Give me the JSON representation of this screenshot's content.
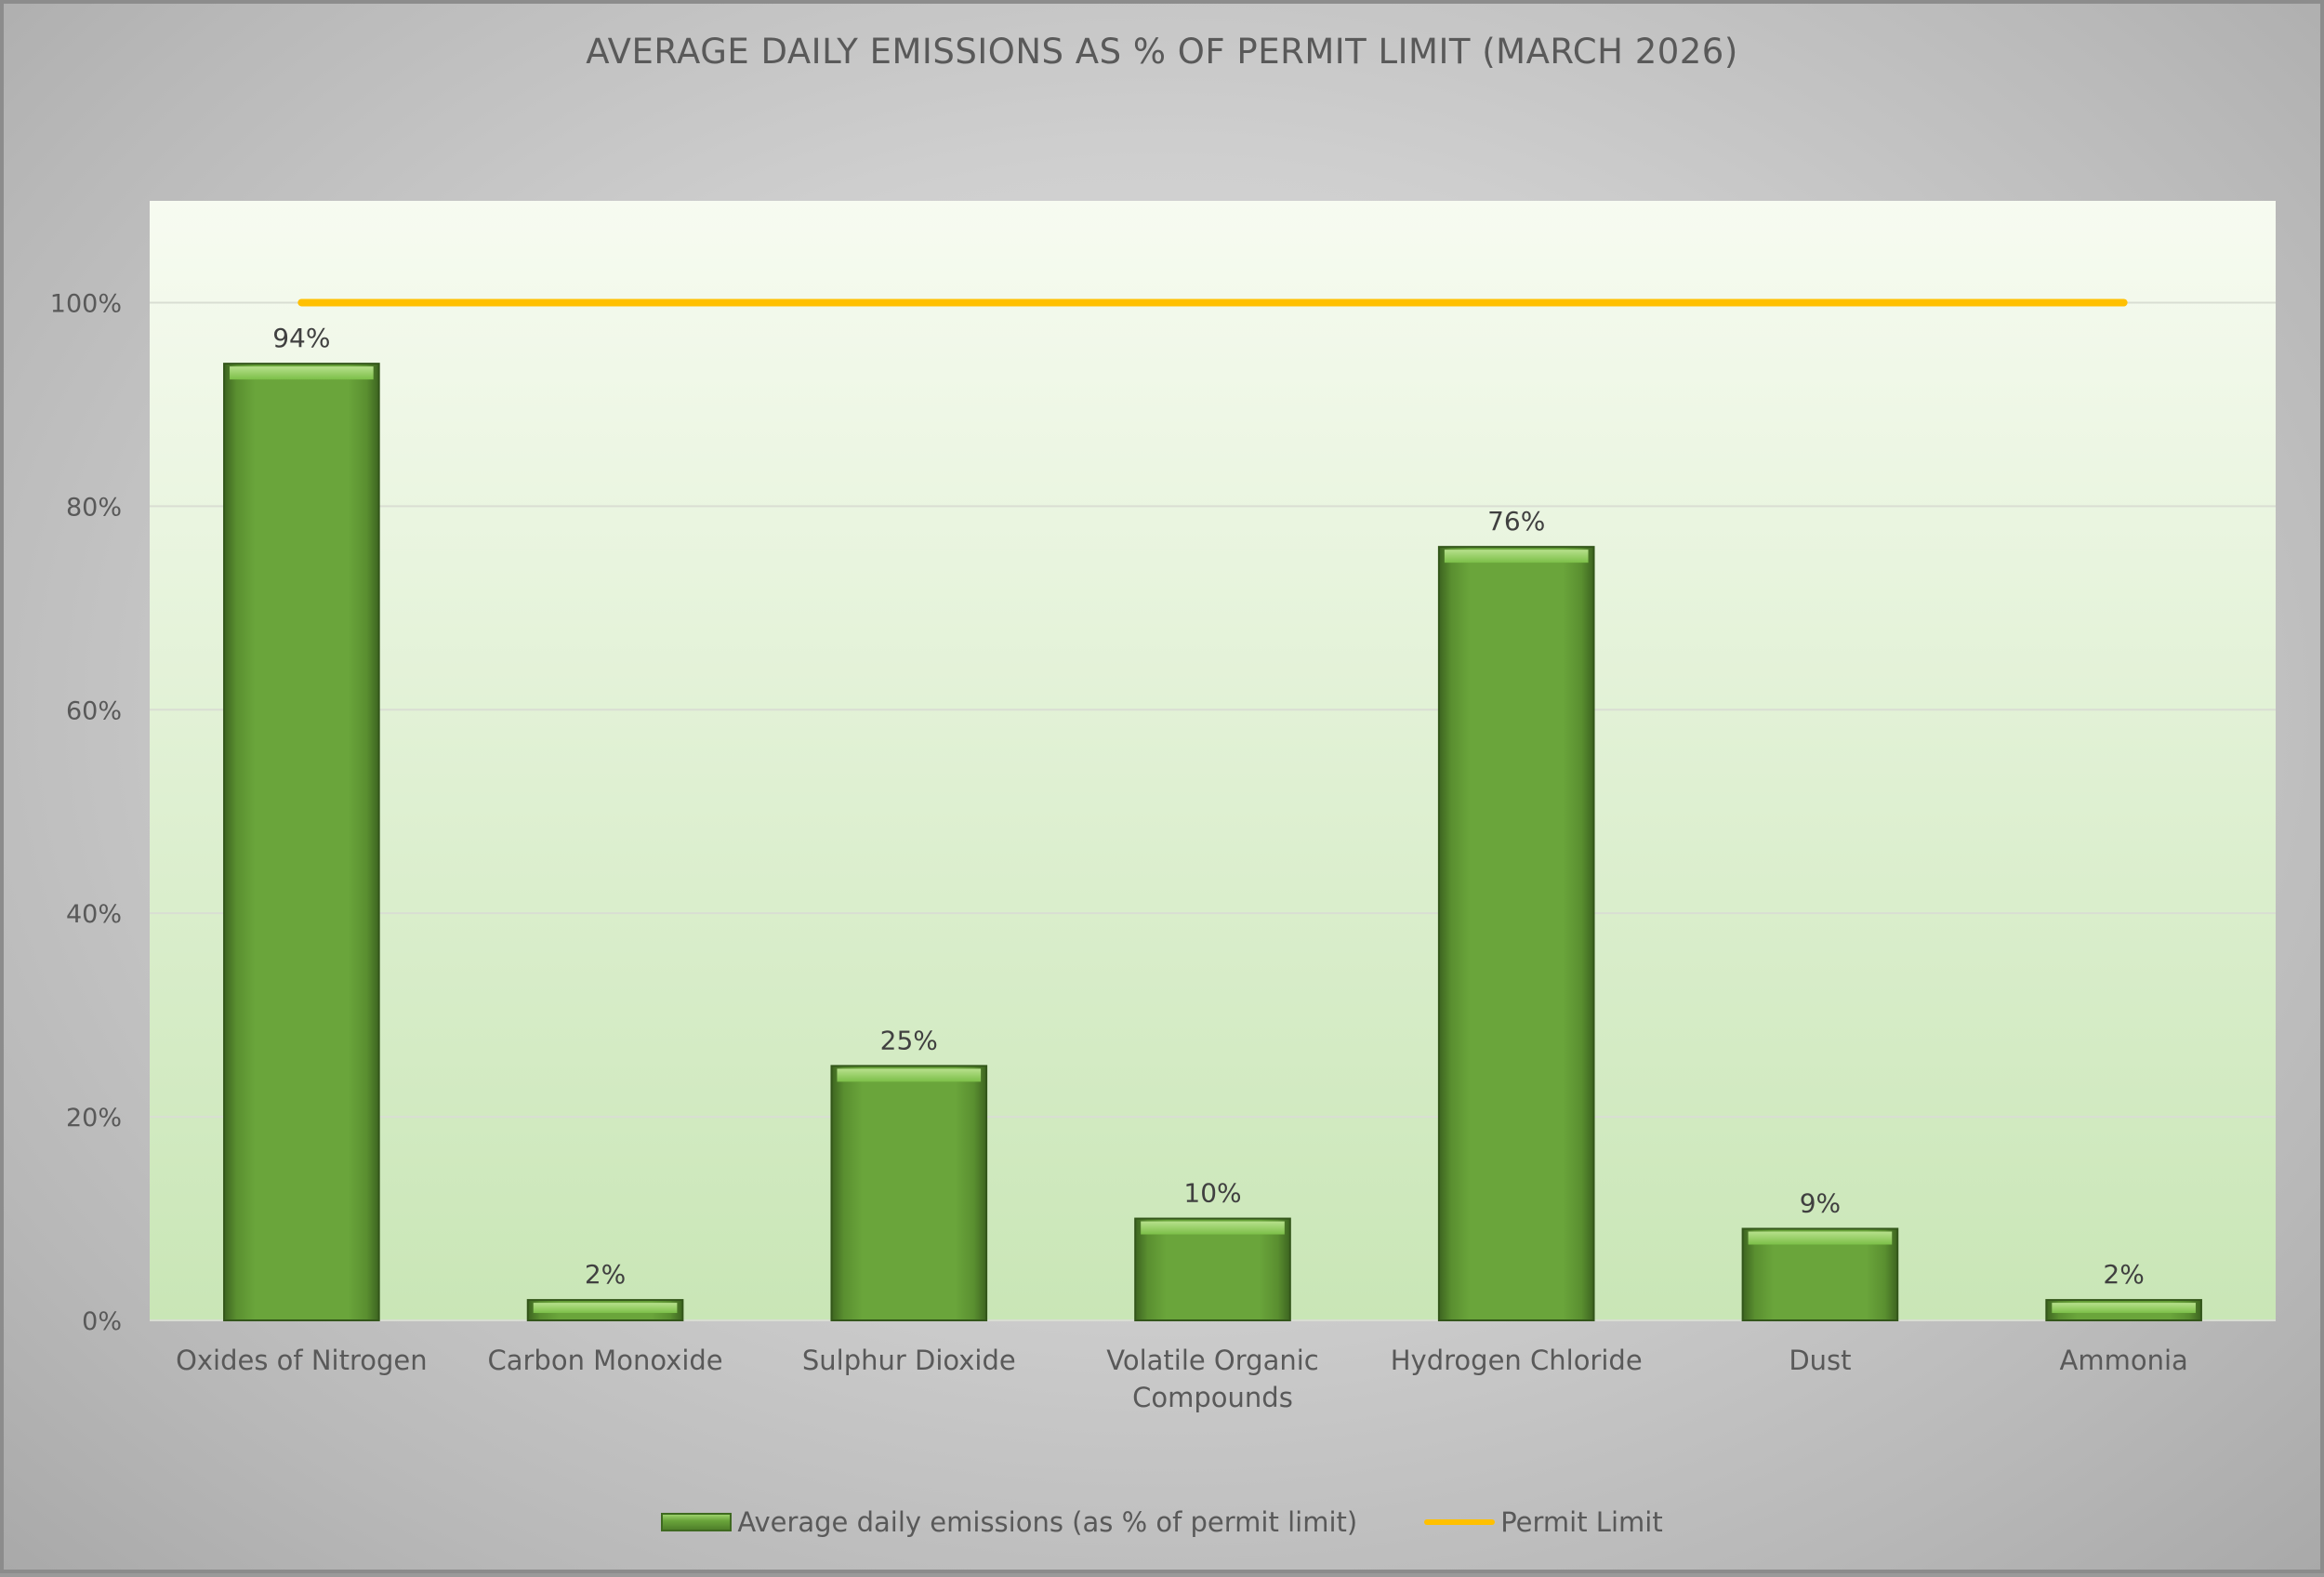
{
  "chart_data": {
    "type": "bar",
    "title": "AVERAGE DAILY EMISSIONS AS % OF PERMIT LIMIT (MARCH 2026)",
    "categories": [
      "Oxides of Nitrogen",
      "Carbon Monoxide",
      "Sulphur Dioxide",
      "Volatile Organic Compounds",
      "Hydrogen Chloride",
      "Dust",
      "Ammonia"
    ],
    "series": [
      {
        "name": "Average daily emissions (as % of permit limit)",
        "type": "bar",
        "values": [
          94,
          2,
          25,
          10,
          76,
          9,
          2
        ],
        "color": "#6aa53b"
      },
      {
        "name": "Permit Limit",
        "type": "line",
        "values": [
          100,
          100,
          100,
          100,
          100,
          100,
          100
        ],
        "color": "#ffc000"
      }
    ],
    "data_labels": [
      "94%",
      "2%",
      "25%",
      "10%",
      "76%",
      "9%",
      "2%"
    ],
    "y_ticks": [
      0,
      20,
      40,
      60,
      80,
      100
    ],
    "y_tick_labels": [
      "0%",
      "20%",
      "40%",
      "60%",
      "80%",
      "100%"
    ],
    "ylim": [
      0,
      110
    ],
    "xlabel": "",
    "ylabel": "",
    "grid": true,
    "legend_position": "bottom"
  }
}
